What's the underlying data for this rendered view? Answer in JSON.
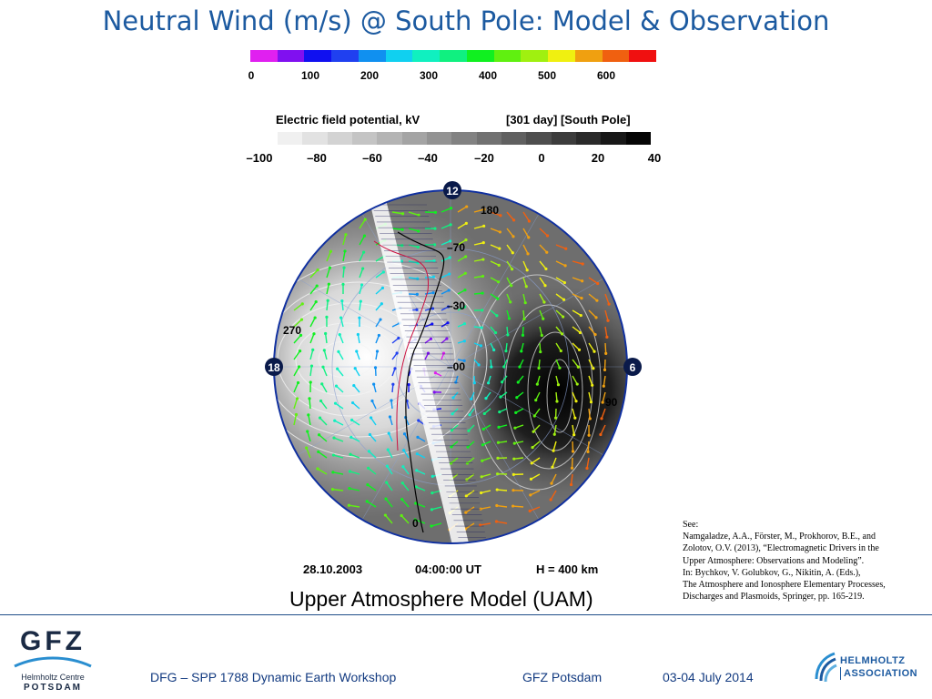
{
  "title": "Neutral Wind (m/s) @ South Pole: Model & Observation",
  "wind_colorbar": {
    "colors": [
      "#e020f0",
      "#8010f0",
      "#1010f0",
      "#2040f0",
      "#1090f0",
      "#10d0f0",
      "#10f0c0",
      "#10f080",
      "#10f020",
      "#60f010",
      "#a0f010",
      "#f0f010",
      "#f0a010",
      "#f06010",
      "#f01010"
    ],
    "ticks": [
      "0",
      "100",
      "200",
      "300",
      "400",
      "500",
      "600"
    ]
  },
  "efield": {
    "title": "Electric field potential, kV",
    "meta": "[301 day] [South Pole]",
    "colors": [
      "#f0f0f0",
      "#e2e2e2",
      "#d3d3d3",
      "#c4c4c4",
      "#b4b4b4",
      "#a4a4a4",
      "#939393",
      "#828282",
      "#717171",
      "#606060",
      "#4e4e4e",
      "#3c3c3c",
      "#2a2a2a",
      "#181818",
      "#050505"
    ],
    "ticks": [
      "–100",
      "–80",
      "–60",
      "–40",
      "–20",
      "0",
      "20",
      "40"
    ]
  },
  "polar": {
    "mlt_labels": {
      "top": "12",
      "left": "18",
      "right": "6"
    },
    "lon_labels": [
      "180",
      "270",
      "90",
      "0"
    ],
    "lat_labels": [
      "–70",
      "–30",
      "–00"
    ]
  },
  "stamp": {
    "date": "28.10.2003",
    "time": "04:00:00 UT",
    "height": "H = 400 km"
  },
  "caption": "Upper Atmosphere Model (UAM)",
  "reference": [
    "See:",
    "Namgaladze, A.A., Förster, M., Prokhorov, B.E., and",
    "Zolotov, O.V. (2013), “Electromagnetic Drivers in the",
    "Upper Atmosphere: Observations and Modeling”.",
    "In: Bychkov, V. Golubkov, G., Nikitin, A. (Eds.),",
    "The Atmosphere and Ionosphere Elementary Processes,",
    "Discharges and Plasmoids, Springer, pp. 165-219."
  ],
  "logos": {
    "gfz_word": "GFZ",
    "gfz_sub": "Helmholtz Centre",
    "gfz_city": "POTSDAM",
    "helmholtz_1": "HELMHOLTZ",
    "helmholtz_2": "ASSOCIATION"
  },
  "footer": {
    "workshop": "DFG – SPP 1788  Dynamic Earth Workshop",
    "place": "GFZ Potsdam",
    "date": "03-04 July  2014"
  }
}
